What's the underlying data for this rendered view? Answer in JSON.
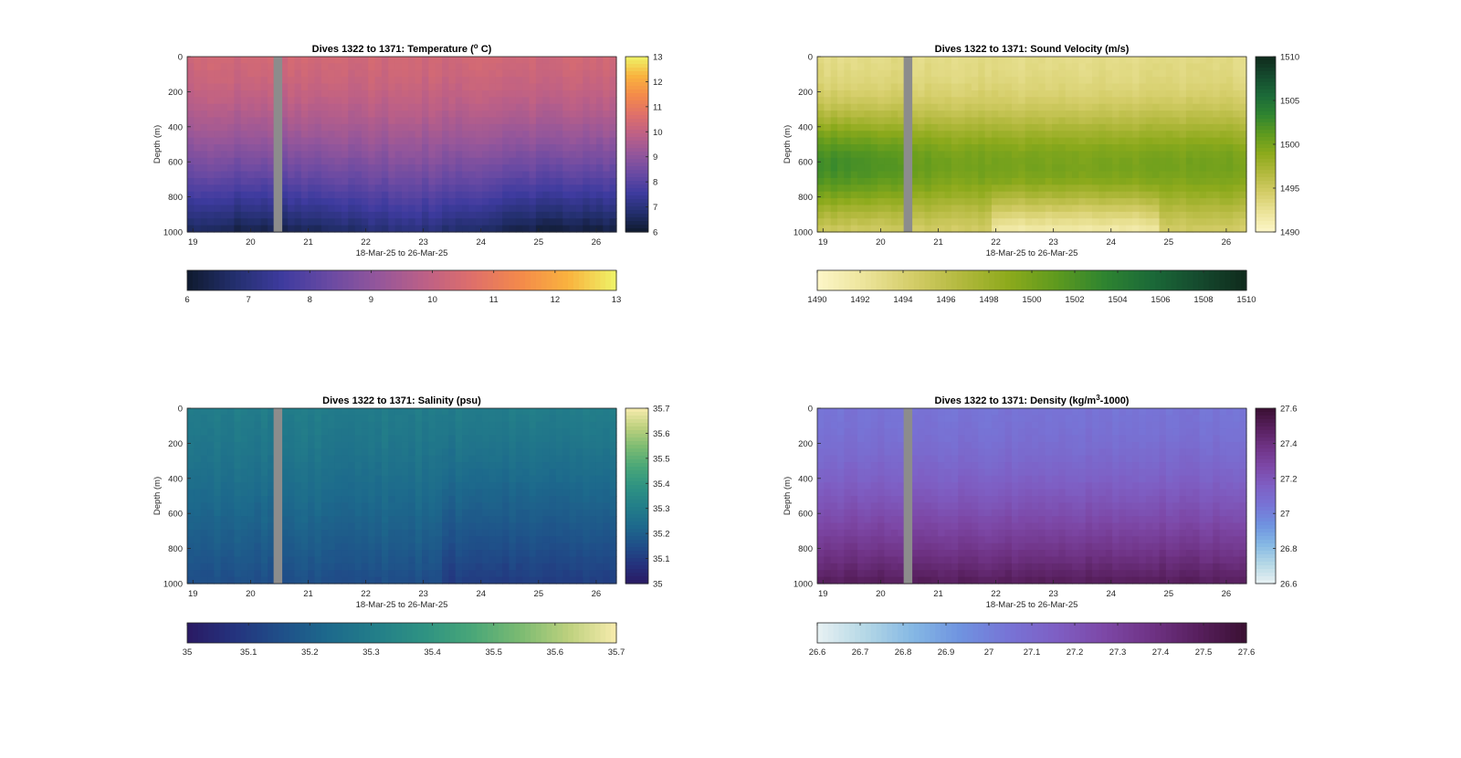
{
  "chart_data": [
    {
      "type": "heatmap",
      "title": "Dives 1322 to 1371: Temperature (",
      "title_sup": "o",
      "title_suffix": " C)",
      "xlabel": "18-Mar-25 to 26-Mar-25",
      "ylabel": "Depth (m)",
      "x_ticks": [
        "19",
        "20",
        "21",
        "22",
        "23",
        "24",
        "25",
        "26"
      ],
      "y_ticks": [
        "0",
        "200",
        "400",
        "600",
        "800",
        "1000"
      ],
      "xlim": [
        18.9,
        26.35
      ],
      "ylim": [
        1000,
        0
      ],
      "gap": [
        20.4,
        20.55
      ],
      "colorbar_ticks": [
        "13",
        "12",
        "11",
        "10",
        "9",
        "8",
        "7",
        "6"
      ],
      "hcolorbar_ticks": [
        "6",
        "7",
        "8",
        "9",
        "10",
        "11",
        "12",
        "13"
      ],
      "clim": [
        6,
        13
      ],
      "colormap": [
        "#0f1a2e",
        "#232f6e",
        "#3e3b9f",
        "#6a4aa3",
        "#94569b",
        "#bd6086",
        "#df6f6a",
        "#f48a4a",
        "#f9b33e",
        "#eef468"
      ],
      "surface_value": 10.3,
      "deep_value": 6.6
    },
    {
      "type": "heatmap",
      "title": "Dives 1322 to 1371: Sound Velocity (m/s)",
      "title_sup": "",
      "title_suffix": "",
      "xlabel": "18-Mar-25 to 26-Mar-25",
      "ylabel": "Depth (m)",
      "x_ticks": [
        "19",
        "20",
        "21",
        "22",
        "23",
        "24",
        "25",
        "26"
      ],
      "y_ticks": [
        "0",
        "200",
        "400",
        "600",
        "800",
        "1000"
      ],
      "xlim": [
        18.9,
        26.35
      ],
      "ylim": [
        1000,
        0
      ],
      "gap": [
        20.4,
        20.55
      ],
      "colorbar_ticks": [
        "1510",
        "1505",
        "1500",
        "1495",
        "1490"
      ],
      "hcolorbar_ticks": [
        "1490",
        "1492",
        "1494",
        "1496",
        "1498",
        "1500",
        "1502",
        "1504",
        "1506",
        "1508",
        "1510"
      ],
      "clim": [
        1490,
        1510
      ],
      "colormap": [
        "#fdf6c8",
        "#ece49a",
        "#d4cd68",
        "#b3b93e",
        "#8daa1c",
        "#5f9a1e",
        "#2f8530",
        "#1b6a38",
        "#154a2e",
        "#0f2a1c"
      ],
      "surface_value": 1493,
      "deep_value": 1493
    },
    {
      "type": "heatmap",
      "title": "Dives 1322 to 1371: Salinity (psu)",
      "title_sup": "",
      "title_suffix": "",
      "xlabel": "18-Mar-25 to 26-Mar-25",
      "ylabel": "Depth (m)",
      "x_ticks": [
        "19",
        "20",
        "21",
        "22",
        "23",
        "24",
        "25",
        "26"
      ],
      "y_ticks": [
        "0",
        "200",
        "400",
        "600",
        "800",
        "1000"
      ],
      "xlim": [
        18.9,
        26.35
      ],
      "ylim": [
        1000,
        0
      ],
      "gap": [
        20.4,
        20.55
      ],
      "colorbar_ticks": [
        "35.7",
        "35.6",
        "35.5",
        "35.4",
        "35.3",
        "35.2",
        "35.1",
        "35"
      ],
      "hcolorbar_ticks": [
        "35",
        "35.1",
        "35.2",
        "35.3",
        "35.4",
        "35.5",
        "35.6",
        "35.7"
      ],
      "clim": [
        35,
        35.7
      ],
      "colormap": [
        "#2a1a64",
        "#24337e",
        "#1f5089",
        "#1d6a8c",
        "#237f89",
        "#2f9382",
        "#4aa778",
        "#7cbb72",
        "#bdd17e",
        "#f7ecad"
      ],
      "surface_value": 35.3,
      "deep_value": 35.15
    },
    {
      "type": "heatmap",
      "title": "Dives 1322 to 1371: Density (kg/m",
      "title_sup": "3",
      "title_suffix": "-1000)",
      "xlabel": "18-Mar-25 to 26-Mar-25",
      "ylabel": "Depth (m)",
      "x_ticks": [
        "19",
        "20",
        "21",
        "22",
        "23",
        "24",
        "25",
        "26"
      ],
      "y_ticks": [
        "0",
        "200",
        "400",
        "600",
        "800",
        "1000"
      ],
      "xlim": [
        18.9,
        26.35
      ],
      "ylim": [
        1000,
        0
      ],
      "gap": [
        20.4,
        20.55
      ],
      "colorbar_ticks": [
        "27.6",
        "27.4",
        "27.2",
        "27",
        "26.8",
        "26.6"
      ],
      "hcolorbar_ticks": [
        "26.6",
        "26.7",
        "26.8",
        "26.9",
        "27",
        "27.1",
        "27.2",
        "27.3",
        "27.4",
        "27.5",
        "27.6"
      ],
      "clim": [
        26.6,
        27.6
      ],
      "colormap": [
        "#e8f1f3",
        "#b5d8e6",
        "#85b8e4",
        "#6f93e0",
        "#7774d6",
        "#7e5fc4",
        "#7d48a7",
        "#6f3385",
        "#571f5d",
        "#3a1032"
      ],
      "surface_value": 27.05,
      "deep_value": 27.5
    }
  ],
  "colors": {
    "gap": "#8c8c8c",
    "axis": "#262626",
    "background": "#ffffff"
  }
}
